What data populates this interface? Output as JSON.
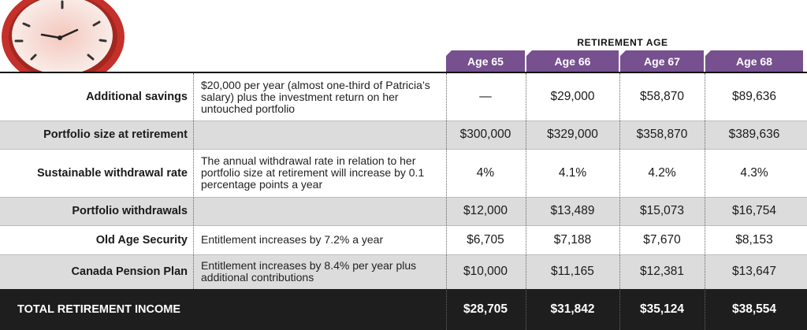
{
  "header": {
    "group_label": "RETIREMENT AGE"
  },
  "columns": [
    "Age 65",
    "Age 66",
    "Age 67",
    "Age 68"
  ],
  "colors": {
    "tab": "#77508f",
    "gray_row": "#dcdcdc",
    "total_row": "#1e1e1e",
    "clock_red": "#c4312a"
  },
  "rows": [
    {
      "label": "Additional savings",
      "desc": "$20,000 per year (almost one-third of Patricia’s salary) plus the investment return on her untouched portfolio",
      "values": [
        "—",
        "$29,000",
        "$58,870",
        "$89,636"
      ]
    },
    {
      "label": "Portfolio size at retirement",
      "desc": "",
      "values": [
        "$300,000",
        "$329,000",
        "$358,870",
        "$389,636"
      ]
    },
    {
      "label": "Sustainable withdrawal rate",
      "desc": "The annual withdrawal rate in relation to her portfolio size at retirement will increase by 0.1 percentage points a year",
      "values": [
        "4%",
        "4.1%",
        "4.2%",
        "4.3%"
      ]
    },
    {
      "label": "Portfolio withdrawals",
      "desc": "",
      "values": [
        "$12,000",
        "$13,489",
        "$15,073",
        "$16,754"
      ]
    },
    {
      "label": "Old Age Security",
      "desc": "Entitlement increases by 7.2% a year",
      "values": [
        "$6,705",
        "$7,188",
        "$7,670",
        "$8,153"
      ]
    },
    {
      "label": "Canada Pension Plan",
      "desc": "Entitlement increases by 8.4% per year plus additional contributions",
      "values": [
        "$10,000",
        "$11,165",
        "$12,381",
        "$13,647"
      ]
    }
  ],
  "total": {
    "label": "TOTAL RETIREMENT INCOME",
    "values": [
      "$28,705",
      "$31,842",
      "$35,124",
      "$38,554"
    ]
  }
}
